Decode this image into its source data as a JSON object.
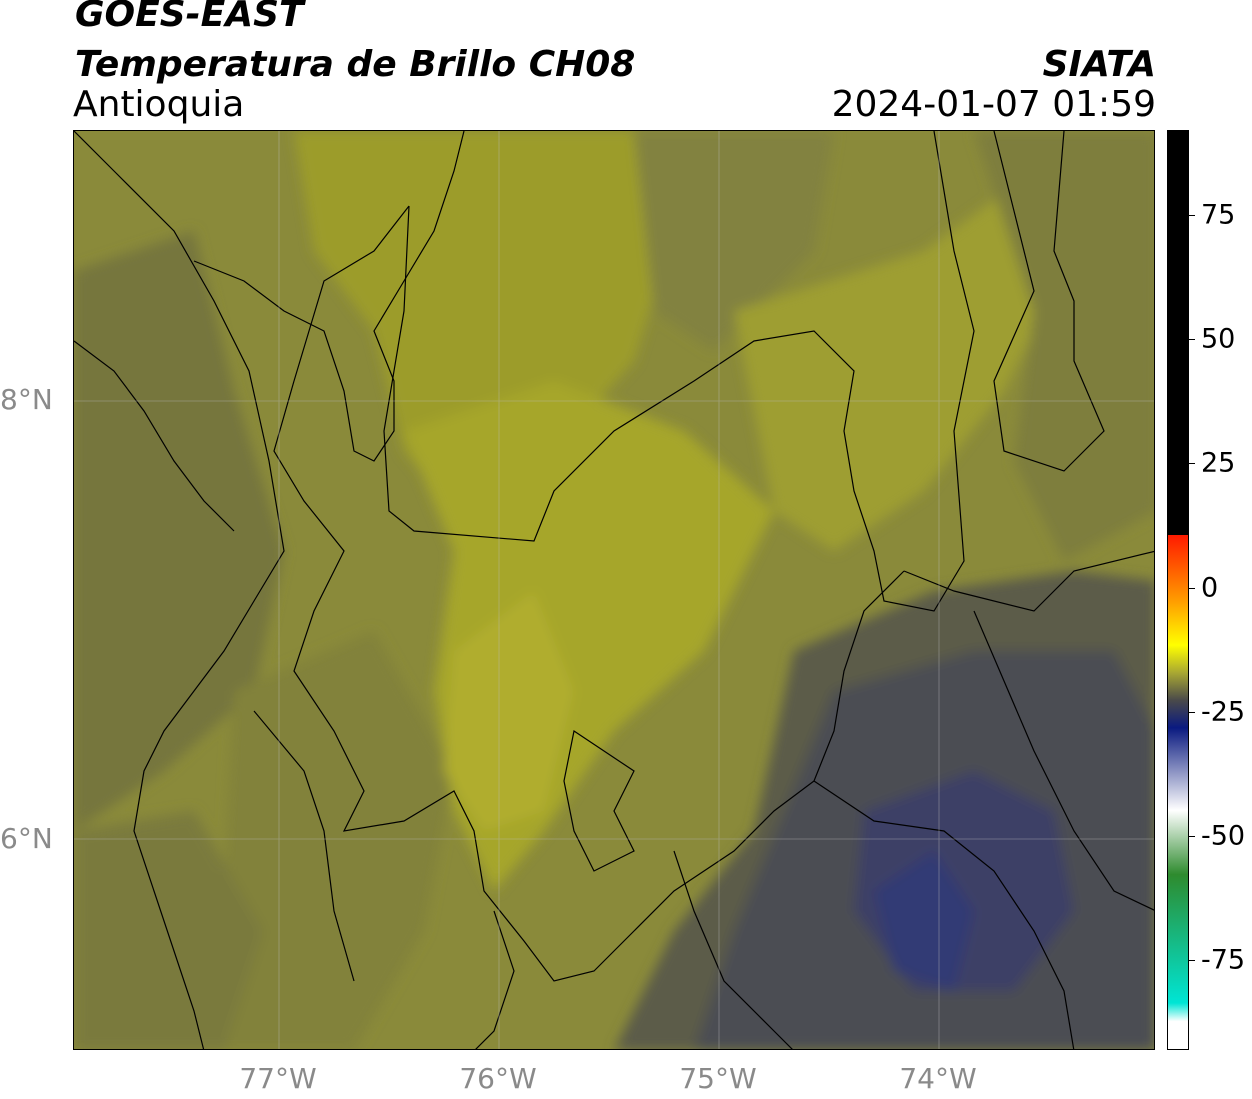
{
  "header": {
    "satellite": "GOES-EAST",
    "product": "Temperatura de Brillo CH08",
    "brand": "SIATA",
    "region": "Antioquia",
    "timestamp": "2024-01-07 01:59"
  },
  "map": {
    "lat_labels": [
      "8°N",
      "6°N"
    ],
    "lon_labels": [
      "77°W",
      "76°W",
      "75°W",
      "74°W"
    ],
    "lon_range": [
      -77.95,
      -73.05
    ],
    "lat_range": [
      5.05,
      9.25
    ]
  },
  "colorbar": {
    "ticks": [
      "75",
      "50",
      "25",
      "0",
      "-25",
      "-50",
      "-75"
    ],
    "tick_values": [
      75,
      50,
      25,
      0,
      -25,
      -50,
      -75
    ],
    "range": [
      -93,
      92
    ],
    "colors": {
      "warm": "#000000",
      "red": "#ff1a00",
      "orange": "#ff9900",
      "yellow": "#ffff00",
      "olive": "#a9a832",
      "gray": "#4a4a4a",
      "navy": "#0a1a80",
      "white": "#ffffff",
      "green": "#2e8b2e",
      "cyan": "#00e5d5"
    }
  }
}
